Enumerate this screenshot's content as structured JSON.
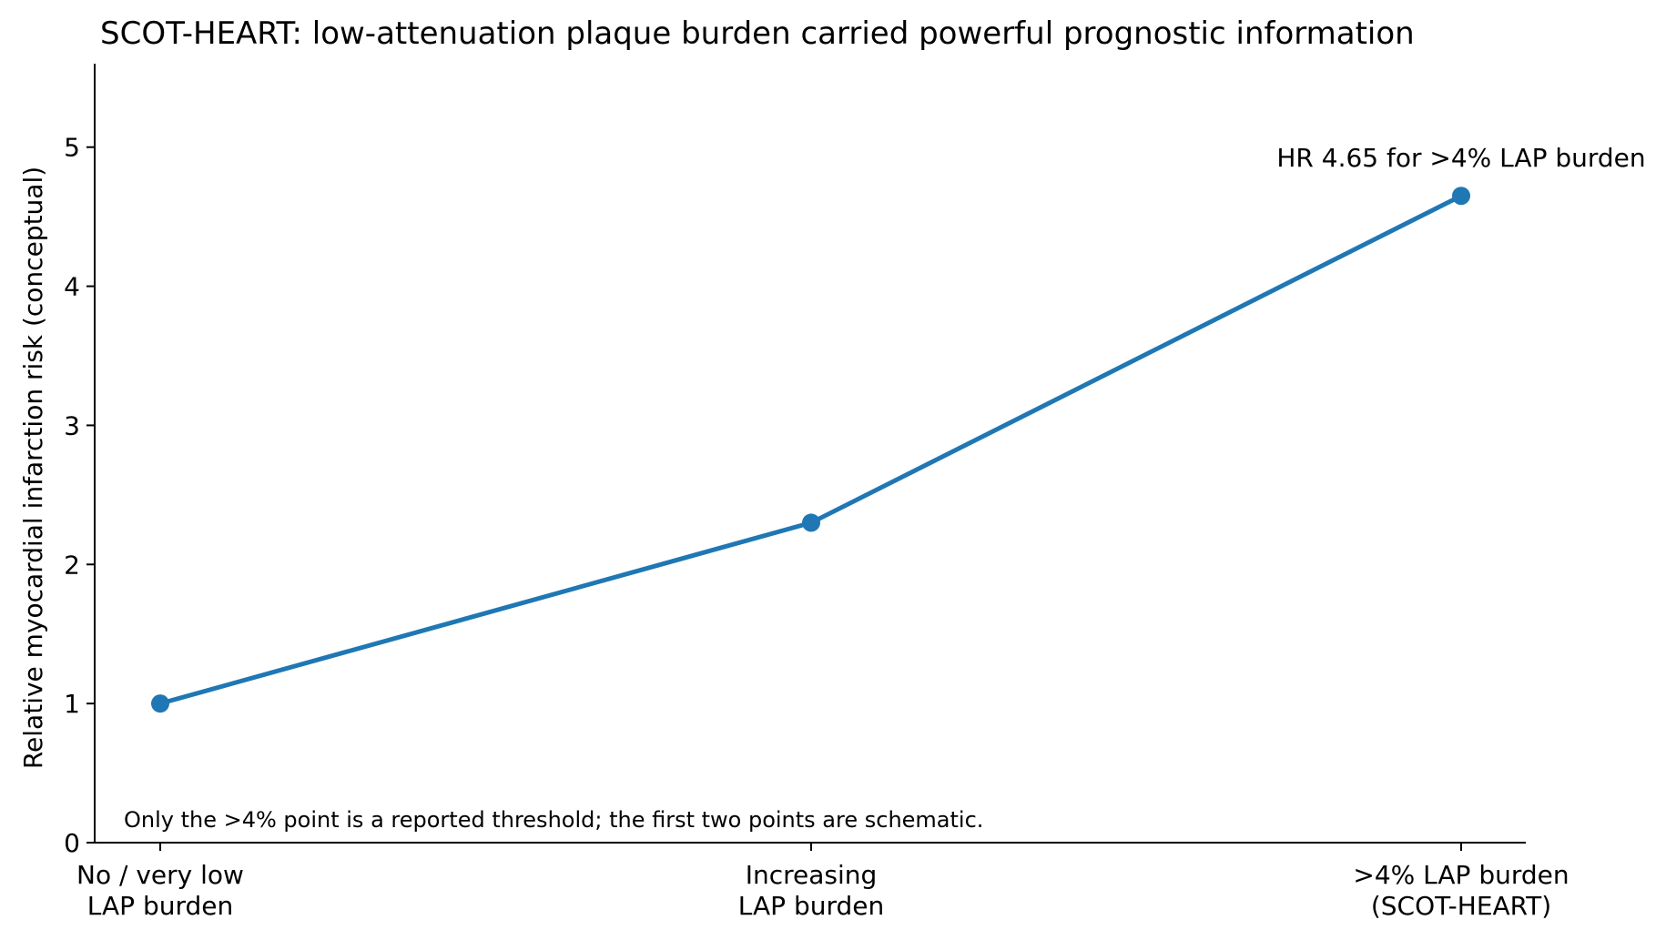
{
  "chart_data": {
    "type": "line",
    "title": "SCOT-HEART: low-attenuation plaque burden carried powerful prognostic information",
    "xlabel": "",
    "ylabel": "Relative myocardial infarction risk (conceptual)",
    "categories": [
      [
        "No / very low",
        "LAP burden"
      ],
      [
        "Increasing",
        "LAP burden"
      ],
      [
        ">4% LAP burden",
        "(SCOT-HEART)"
      ]
    ],
    "series": [
      {
        "values": [
          1.0,
          2.3,
          4.65
        ],
        "color": "#1f77b4"
      }
    ],
    "ylim": [
      0,
      5.6
    ],
    "yticks": [
      "0",
      "1",
      "2",
      "3",
      "4",
      "5"
    ],
    "grid": false,
    "annotations": [
      {
        "text": "HR 4.65 for >4% LAP burden",
        "point_index": 2
      }
    ],
    "note": "Only the >4% point is a reported threshold; the first two points are schematic."
  }
}
